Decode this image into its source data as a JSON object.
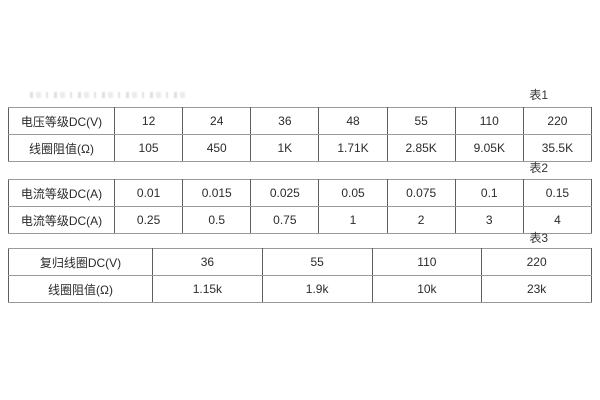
{
  "page": {
    "background": "#ffffff",
    "border_color_horizontal": "#9a9a9a",
    "border_color_vertical": "#5f5f5f",
    "text_color": "#2b2b2b"
  },
  "tables": [
    {
      "label": "表1",
      "rows": [
        {
          "header": "电压等级DC(V)",
          "values": [
            "12",
            "24",
            "36",
            "48",
            "55",
            "110",
            "220"
          ]
        },
        {
          "header": "线圈阻值(Ω)",
          "values": [
            "105",
            "450",
            "1K",
            "1.71K",
            "2.85K",
            "9.05K",
            "35.5K"
          ]
        }
      ]
    },
    {
      "label": "表2",
      "rows": [
        {
          "header": "电流等级DC(A)",
          "values": [
            "0.01",
            "0.015",
            "0.025",
            "0.05",
            "0.075",
            "0.1",
            "0.15"
          ]
        },
        {
          "header": "电流等级DC(A)",
          "values": [
            "0.25",
            "0.5",
            "0.75",
            "1",
            "2",
            "3",
            "4"
          ]
        }
      ]
    },
    {
      "label": "表3",
      "rows": [
        {
          "header": "复归线圈DC(V)",
          "values": [
            "36",
            "55",
            "110",
            "220"
          ]
        },
        {
          "header": "线圈阻值(Ω)",
          "values": [
            "1.15k",
            "1.9k",
            "10k",
            "23k"
          ]
        }
      ]
    }
  ]
}
